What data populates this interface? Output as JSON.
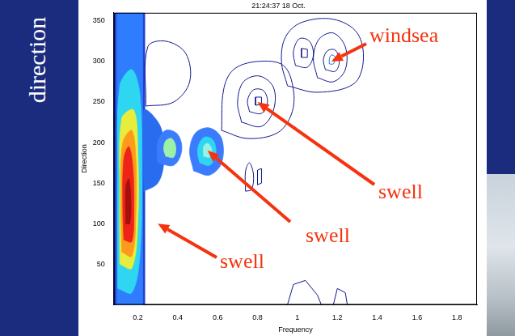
{
  "slide_text": "direction",
  "chart_data": {
    "type": "contour",
    "title": "21:24:37 18 Oct.",
    "x_label": "Frequency",
    "y_label": "Direction",
    "xlim": [
      0.08,
      1.9
    ],
    "ylim": [
      0,
      360
    ],
    "xticks": [
      0.2,
      0.4,
      0.6,
      0.8,
      1,
      1.2,
      1.4,
      1.6,
      1.8
    ],
    "yticks": [
      50,
      100,
      150,
      200,
      250,
      300,
      350
    ],
    "grid": false,
    "series": [
      {
        "type": "area",
        "color": "#1f3fd0",
        "x": [
          0.08,
          0.235,
          0.235,
          0.08,
          0.08
        ],
        "values": [
          0,
          0,
          360,
          360,
          0
        ]
      },
      {
        "type": "area",
        "color": "#2f7cff",
        "x": [
          0.095,
          0.225,
          0.225,
          0.095,
          0.095
        ],
        "values": [
          0,
          0,
          360,
          360,
          0
        ]
      },
      {
        "type": "area",
        "color": "#2fd6f2",
        "x": [
          0.1,
          0.17,
          0.21,
          0.22,
          0.21,
          0.17,
          0.11,
          0.1,
          0.1
        ],
        "values": [
          20,
          15,
          60,
          160,
          260,
          290,
          270,
          160,
          20
        ]
      },
      {
        "type": "area",
        "color": "#e8ec3a",
        "x": [
          0.11,
          0.17,
          0.2,
          0.2,
          0.18,
          0.12,
          0.11,
          0.11
        ],
        "values": [
          50,
          45,
          100,
          190,
          240,
          230,
          140,
          50
        ]
      },
      {
        "type": "area",
        "color": "#ff9a1c",
        "x": [
          0.12,
          0.17,
          0.19,
          0.19,
          0.17,
          0.125,
          0.115,
          0.12
        ],
        "values": [
          65,
          60,
          110,
          180,
          215,
          200,
          130,
          65
        ]
      },
      {
        "type": "area",
        "color": "#ee2418",
        "x": [
          0.13,
          0.17,
          0.18,
          0.175,
          0.155,
          0.13,
          0.125,
          0.13
        ],
        "values": [
          80,
          78,
          120,
          170,
          195,
          180,
          120,
          80
        ]
      },
      {
        "type": "area",
        "color": "#a50f0f",
        "x": [
          0.14,
          0.16,
          0.165,
          0.155,
          0.14,
          0.14
        ],
        "values": [
          100,
          100,
          130,
          155,
          145,
          100
        ]
      },
      {
        "type": "area",
        "color": "#2a6cf0",
        "x": [
          0.23,
          0.3,
          0.33,
          0.32,
          0.27,
          0.23,
          0.23
        ],
        "values": [
          140,
          150,
          175,
          215,
          235,
          240,
          140
        ]
      },
      {
        "type": "area",
        "color": "#3b7cff",
        "x": [
          0.3,
          0.38,
          0.42,
          0.4,
          0.34,
          0.3,
          0.3
        ],
        "values": [
          175,
          172,
          190,
          210,
          215,
          200,
          175
        ]
      },
      {
        "type": "area",
        "color": "#9cf0a8",
        "x": [
          0.34,
          0.38,
          0.39,
          0.37,
          0.34,
          0.33,
          0.34
        ],
        "values": [
          183,
          182,
          195,
          205,
          202,
          192,
          183
        ]
      },
      {
        "type": "area",
        "color": "#3b7cff",
        "x": [
          0.48,
          0.56,
          0.62,
          0.62,
          0.56,
          0.49,
          0.46,
          0.48
        ],
        "values": [
          165,
          160,
          175,
          205,
          218,
          212,
          190,
          165
        ]
      },
      {
        "type": "area",
        "color": "#2fd6f2",
        "x": [
          0.51,
          0.56,
          0.59,
          0.58,
          0.54,
          0.51,
          0.5,
          0.51
        ],
        "values": [
          175,
          172,
          185,
          202,
          207,
          200,
          188,
          175
        ]
      },
      {
        "type": "area",
        "color": "#9cf0e0",
        "x": [
          0.53,
          0.56,
          0.57,
          0.55,
          0.53,
          0.53
        ],
        "values": [
          183,
          182,
          192,
          199,
          195,
          183
        ]
      },
      {
        "type": "line",
        "color": "#10168c",
        "x": [
          0.62,
          0.75,
          0.9,
          0.97,
          0.98,
          0.93,
          0.8,
          0.68,
          0.63,
          0.62
        ],
        "values": [
          215,
          205,
          212,
          235,
          265,
          295,
          300,
          290,
          265,
          215
        ]
      },
      {
        "type": "line",
        "color": "#10168c",
        "x": [
          0.72,
          0.82,
          0.88,
          0.88,
          0.81,
          0.73,
          0.7,
          0.72
        ],
        "values": [
          225,
          220,
          240,
          268,
          282,
          275,
          250,
          225
        ]
      },
      {
        "type": "line",
        "color": "#10168c",
        "x": [
          0.76,
          0.82,
          0.85,
          0.83,
          0.78,
          0.75,
          0.76
        ],
        "values": [
          238,
          236,
          250,
          264,
          265,
          252,
          238
        ]
      },
      {
        "type": "line",
        "color": "#10168c",
        "x": [
          0.79,
          0.82,
          0.82,
          0.79,
          0.79
        ],
        "values": [
          246,
          247,
          256,
          256,
          246
        ]
      },
      {
        "type": "line",
        "color": "#10168c",
        "x": [
          0.95,
          1.1,
          1.28,
          1.33,
          1.3,
          1.18,
          1.02,
          0.94,
          0.92,
          0.95
        ],
        "values": [
          270,
          262,
          272,
          300,
          335,
          352,
          348,
          330,
          300,
          270
        ]
      },
      {
        "type": "line",
        "color": "#10168c",
        "x": [
          1.1,
          1.18,
          1.24,
          1.24,
          1.18,
          1.11,
          1.08,
          1.1
        ],
        "values": [
          280,
          275,
          290,
          318,
          335,
          328,
          305,
          280
        ]
      },
      {
        "type": "line",
        "color": "#10168c",
        "x": [
          1.14,
          1.19,
          1.21,
          1.19,
          1.15,
          1.13,
          1.14
        ],
        "values": [
          290,
          288,
          300,
          314,
          313,
          302,
          290
        ]
      },
      {
        "type": "line",
        "color": "#1e6ee8",
        "x": [
          1.16,
          1.18,
          1.19,
          1.17,
          1.16,
          1.16
        ],
        "values": [
          297,
          297,
          305,
          308,
          303,
          297
        ]
      },
      {
        "type": "line",
        "color": "#10168c",
        "x": [
          0.99,
          1.05,
          1.08,
          1.06,
          1.01,
          0.98,
          0.99
        ],
        "values": [
          295,
          293,
          308,
          325,
          328,
          312,
          295
        ]
      },
      {
        "type": "line",
        "color": "#10168c",
        "x": [
          1.02,
          1.05,
          1.05,
          1.02,
          1.02
        ],
        "values": [
          305,
          305,
          315,
          316,
          305
        ]
      },
      {
        "type": "line",
        "color": "#10168c",
        "x": [
          0.24,
          0.38,
          0.46,
          0.44,
          0.34,
          0.25,
          0.24
        ],
        "values": [
          245,
          250,
          275,
          310,
          325,
          318,
          245
        ]
      },
      {
        "type": "line",
        "color": "#10168c",
        "x": [
          0.74,
          0.77,
          0.78,
          0.76,
          0.74,
          0.74
        ],
        "values": [
          140,
          142,
          160,
          175,
          165,
          140
        ]
      },
      {
        "type": "line",
        "color": "#10168c",
        "x": [
          0.8,
          0.82,
          0.82,
          0.8,
          0.8
        ],
        "values": [
          148,
          150,
          168,
          166,
          148
        ]
      },
      {
        "type": "line",
        "color": "#10168c",
        "x": [
          0.95,
          0.98,
          1.04,
          1.1,
          1.12
        ],
        "values": [
          0,
          25,
          30,
          12,
          0
        ]
      },
      {
        "type": "line",
        "color": "#10168c",
        "x": [
          1.18,
          1.2,
          1.24,
          1.25
        ],
        "values": [
          0,
          20,
          15,
          0
        ]
      }
    ],
    "annotations": [
      {
        "text": "windsea",
        "x": 1.17,
        "y": 300
      },
      {
        "text": "swell",
        "x": 0.8,
        "y": 250
      },
      {
        "text": "swell",
        "x": 0.55,
        "y": 190
      },
      {
        "text": "swell",
        "x": 0.3,
        "y": 100
      }
    ]
  }
}
